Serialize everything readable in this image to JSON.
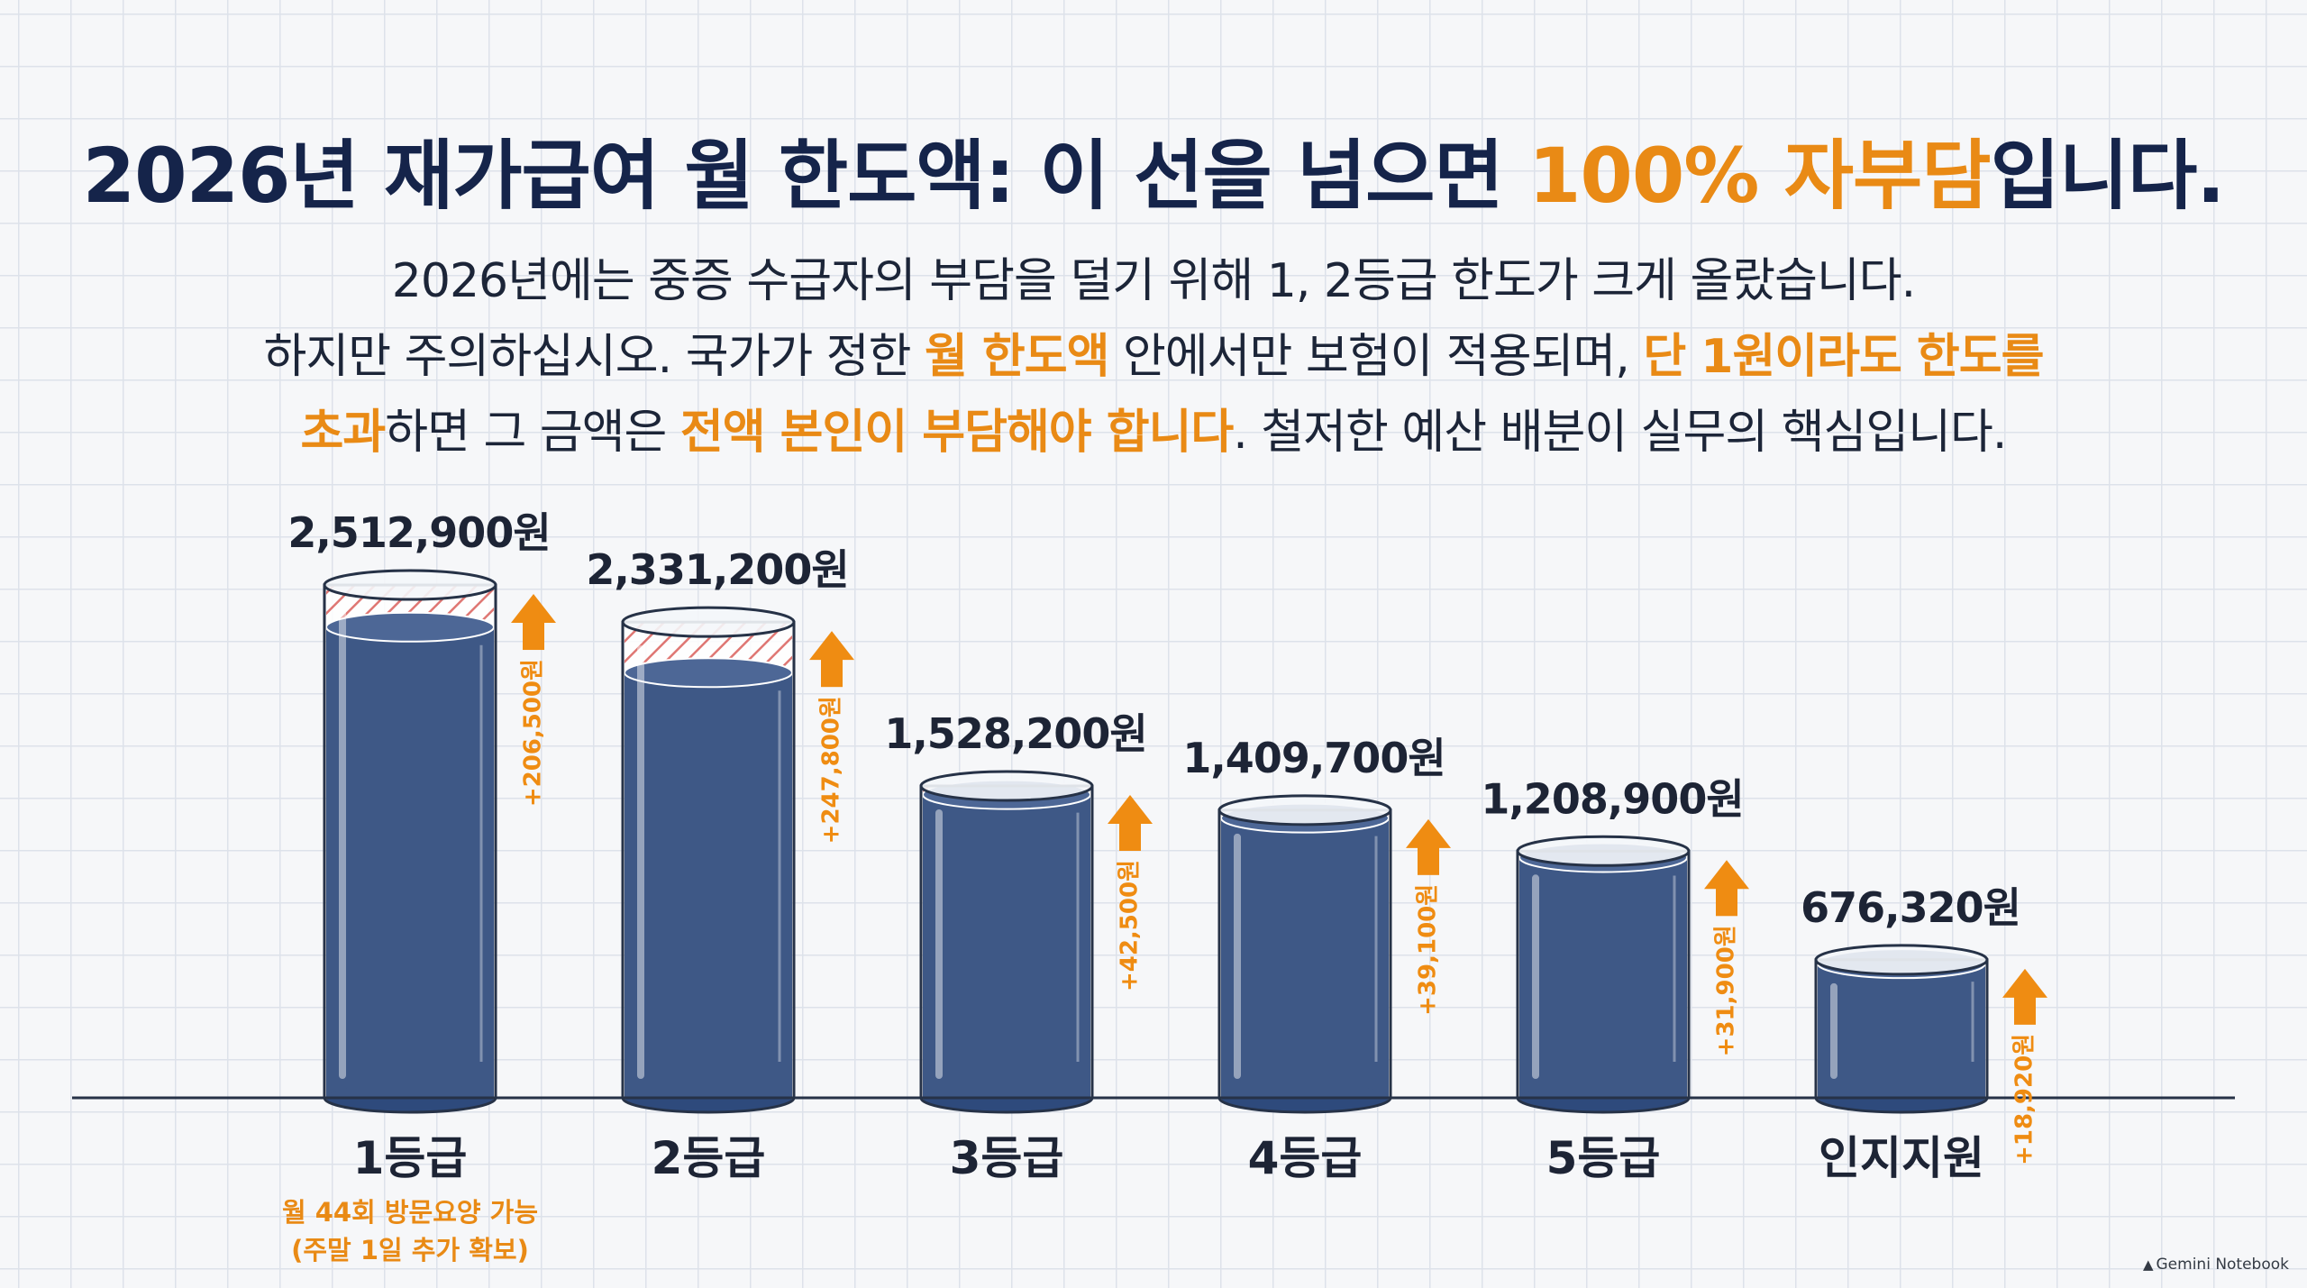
{
  "title": {
    "before": "2026년 재가급여 월 한도액: 이 선을 넘으면 ",
    "highlight": "100% 자부담",
    "after": "입니다."
  },
  "subtitle": {
    "line1": "2026년에는 중증 수급자의 부담을 덜기 위해 1, 2등급 한도가 크게 올랐습니다.",
    "line2_a": "하지만 주의하십시오. 국가가 정한 ",
    "line2_hl1": "월 한도액",
    "line2_b": " 안에서만 보험이 적용되며, ",
    "line2_hl2": "단 1원이라도 한도를",
    "line3_hl1": "초과",
    "line3_a": "하면 그 금액은 ",
    "line3_hl2": "전액 본인이 부담해야 합니다",
    "line3_b": ". 철저한 예산 배분이 실무의 핵심입니다."
  },
  "chart_data": {
    "type": "bar",
    "categories": [
      "1등급",
      "2등급",
      "3등급",
      "4등급",
      "5등급",
      "인지지원"
    ],
    "values": [
      2512900,
      2331200,
      1528200,
      1409700,
      1208900,
      676320
    ],
    "value_labels": [
      "2,512,900원",
      "2,331,200원",
      "1,528,200원",
      "1,409,700원",
      "1,208,900원",
      "676,320원"
    ],
    "increase_values": [
      206500,
      247800,
      42500,
      39100,
      31900,
      18920
    ],
    "increase_labels": [
      "+206,500원",
      "+247,800원",
      "+42,500원",
      "+39,100원",
      "+31,900원",
      "+18,920원"
    ],
    "ylim": [
      0,
      2650000
    ],
    "xlabel": "",
    "ylabel": "",
    "grid": false,
    "legend": "none",
    "note": [
      "월 44회 방문요양 가능",
      "(주말 1일 추가 확보)"
    ],
    "colors": {
      "liquid": "#2e4a7c",
      "liquid_top": "#3e5b8e",
      "hatch": "#d9534f",
      "arrow": "#ef8c12",
      "label": "#1d2435",
      "note": "#e98a15",
      "axis": "#263247"
    }
  },
  "watermark": {
    "icon": "gemini-logo-icon",
    "text": "Gemini Notebook"
  }
}
